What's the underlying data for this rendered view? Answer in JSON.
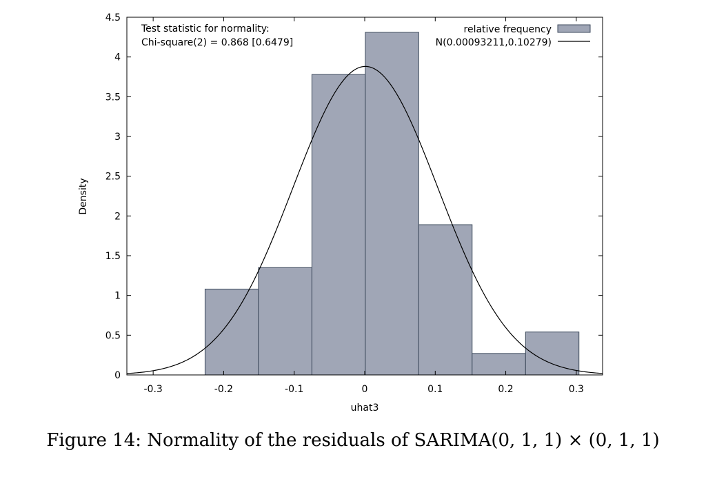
{
  "chart_data": {
    "type": "bar",
    "xlabel": "uhat3",
    "ylabel": "Density",
    "xlim": [
      -0.3373,
      0.3373
    ],
    "ylim": [
      0,
      4.5
    ],
    "x_ticks": [
      -0.3,
      -0.2,
      -0.1,
      0,
      0.1,
      0.2,
      0.3
    ],
    "y_ticks": [
      0,
      0.5,
      1,
      1.5,
      2,
      2.5,
      3,
      3.5,
      4,
      4.5
    ],
    "grid": false,
    "legend_position": "top-right",
    "series": [
      {
        "name": "relative frequency",
        "kind": "histogram",
        "color": "#a0a6b6",
        "edge_color": "#3d4a5c",
        "bins": [
          {
            "from": -0.2264,
            "to": -0.1507,
            "value": 1.08
          },
          {
            "from": -0.1507,
            "to": -0.0749,
            "value": 1.35
          },
          {
            "from": -0.0749,
            "to": 0.0008,
            "value": 3.78
          },
          {
            "from": 0.0008,
            "to": 0.0766,
            "value": 4.31
          },
          {
            "from": 0.0766,
            "to": 0.1523,
            "value": 1.89
          },
          {
            "from": 0.1523,
            "to": 0.2281,
            "value": 0.27
          },
          {
            "from": 0.2281,
            "to": 0.3038,
            "value": 0.54
          }
        ]
      },
      {
        "name": "N(0.00093211,0.10279)",
        "kind": "normal_density",
        "mean": 0.00093211,
        "sd": 0.10279,
        "color": "#000000"
      }
    ],
    "annotation": [
      "Test statistic for normality:",
      "Chi-square(2) = 0.868 [0.6479]"
    ]
  },
  "caption": "Figure 14: Normality of the residuals of SARIMA(0, 1, 1) × (0, 1, 1)"
}
